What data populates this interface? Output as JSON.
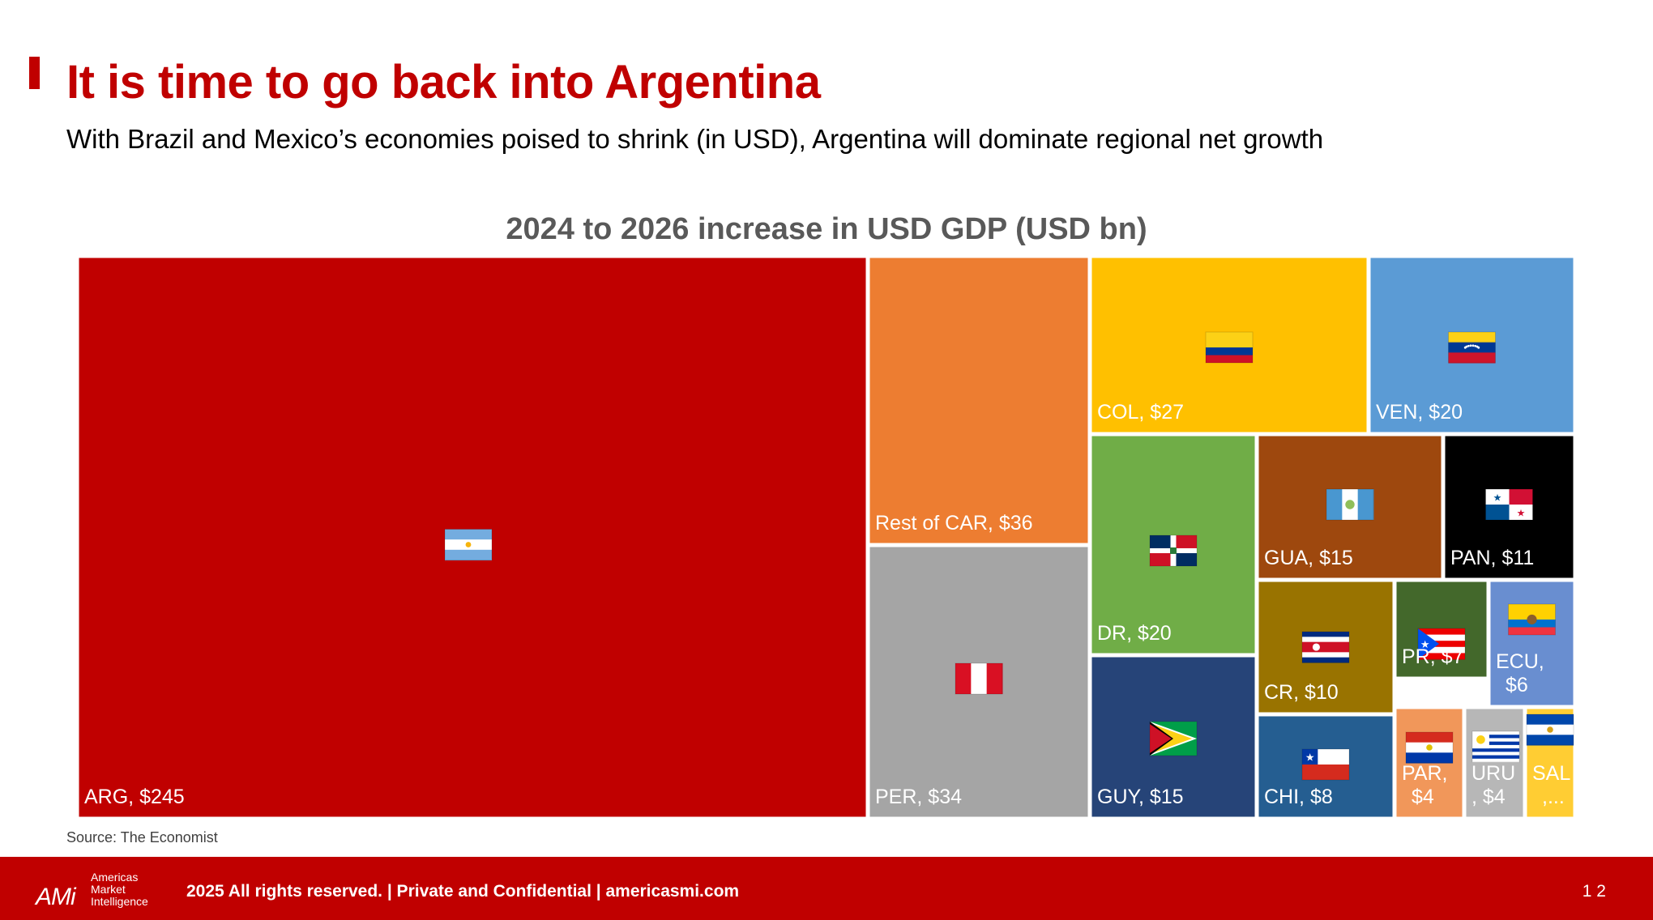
{
  "slide": {
    "title": "It is time to go back into Argentina",
    "subtitle": "With Brazil and Mexico’s economies poised to shrink (in USD), Argentina will dominate regional net growth",
    "source": "Source: The Economist"
  },
  "footer": {
    "logo_mark": "AMi",
    "logo_lines": [
      "Americas",
      "Market",
      "Intelligence"
    ],
    "text": "2025 All rights reserved. | Private and Confidential | americasmi.com",
    "page": "1 2"
  },
  "chart_data": {
    "type": "treemap",
    "title": "2024 to 2026 increase in USD GDP (USD bn)",
    "unit": "USD bn",
    "nodes": [
      {
        "code": "ARG",
        "label": "ARG,  $245",
        "value": 245,
        "color": "#c00000",
        "flag": "argentina-flag"
      },
      {
        "code": "Rest of CAR",
        "label": "Rest of CAR,  $36",
        "value": 36,
        "color": "#ed7d31",
        "flag": ""
      },
      {
        "code": "PER",
        "label": "PER,  $34",
        "value": 34,
        "color": "#a5a5a5",
        "flag": "peru-flag"
      },
      {
        "code": "COL",
        "label": "COL,  $27",
        "value": 27,
        "color": "#ffc000",
        "flag": "colombia-flag"
      },
      {
        "code": "VEN",
        "label": "VEN,  $20",
        "value": 20,
        "color": "#5b9bd5",
        "flag": "venezuela-flag"
      },
      {
        "code": "DR",
        "label": "DR,  $20",
        "value": 20,
        "color": "#70ad47",
        "flag": "dominican-republic-flag"
      },
      {
        "code": "GUY",
        "label": "GUY,  $15",
        "value": 15,
        "color": "#264478",
        "flag": "guyana-flag"
      },
      {
        "code": "GUA",
        "label": "GUA,  $15",
        "value": 15,
        "color": "#9e480e",
        "flag": "guatemala-flag"
      },
      {
        "code": "PAN",
        "label": "PAN,  $11",
        "value": 11,
        "color": "#000000",
        "flag": "panama-flag"
      },
      {
        "code": "CR",
        "label": "CR,  $10",
        "value": 10,
        "color": "#997300",
        "flag": "costa-rica-flag"
      },
      {
        "code": "CHI",
        "label": "CHI,  $8",
        "value": 8,
        "color": "#255e91",
        "flag": "chile-flag"
      },
      {
        "code": "PR",
        "label": "PR,  $7",
        "value": 7,
        "color": "#43682b",
        "flag": "puerto-rico-flag"
      },
      {
        "code": "ECU",
        "label": "ECU,  $6",
        "value": 6,
        "color": "#698ed0",
        "flag": "ecuador-flag"
      },
      {
        "code": "PAR",
        "label": "PAR,  $4",
        "value": 4,
        "color": "#f1975a",
        "flag": "paraguay-flag"
      },
      {
        "code": "URU",
        "label": "URU,  $4",
        "value": 4,
        "color": "#b7b7b7",
        "flag": "uruguay-flag"
      },
      {
        "code": "SAL",
        "label": "SAL,...",
        "value": 3,
        "color": "#ffcd33",
        "flag": "el-salvador-flag"
      }
    ]
  }
}
